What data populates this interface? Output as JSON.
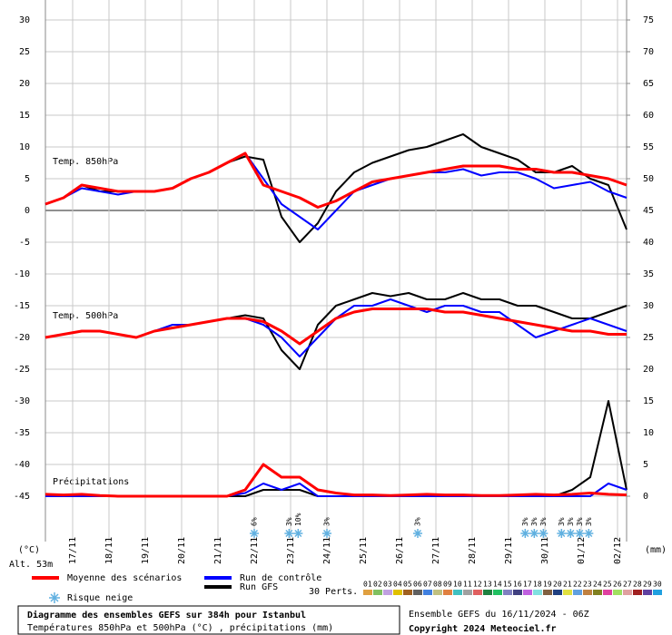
{
  "chart_data": {
    "type": "line",
    "title": "Diagramme des ensembles GEFS sur 384h pour Istanbul",
    "subtitle": "Températures 850hPa et 500hPa (°C) , précipitations (mm)",
    "run_info": "Ensemble GEFS du 16/11/2024 - 06Z",
    "copyright": "Copyright 2024 Meteociel.fr",
    "ylabel": "(°C)",
    "y2label": "(mm)",
    "altitude": "Alt. 53m",
    "panel_labels": [
      "Temp. 850hPa",
      "Temp. 500hPa",
      "Précipitations"
    ],
    "snow_label": "Risque neige",
    "perts_label": "30 Perts.",
    "legend": [
      {
        "label": "Moyenne des scénarios",
        "color": "#ff0000"
      },
      {
        "label": "Run de contrôle",
        "color": "#0000ff"
      },
      {
        "label": "Run GFS",
        "color": "#000000"
      }
    ],
    "perturbations": [
      {
        "name": "01",
        "color": "#e0a040"
      },
      {
        "name": "02",
        "color": "#80c060"
      },
      {
        "name": "03",
        "color": "#c0a0e0"
      },
      {
        "name": "04",
        "color": "#e0c000"
      },
      {
        "name": "05",
        "color": "#a06020"
      },
      {
        "name": "06",
        "color": "#606060"
      },
      {
        "name": "07",
        "color": "#4080e0"
      },
      {
        "name": "08",
        "color": "#c0c080"
      },
      {
        "name": "09",
        "color": "#e08040"
      },
      {
        "name": "10",
        "color": "#40c0c0"
      },
      {
        "name": "11",
        "color": "#a0a0a0"
      },
      {
        "name": "12",
        "color": "#e06060"
      },
      {
        "name": "13",
        "color": "#208040"
      },
      {
        "name": "14",
        "color": "#20c060"
      },
      {
        "name": "15",
        "color": "#8080c0"
      },
      {
        "name": "16",
        "color": "#404080"
      },
      {
        "name": "17",
        "color": "#c060e0"
      },
      {
        "name": "18",
        "color": "#80e0e0"
      },
      {
        "name": "19",
        "color": "#806040"
      },
      {
        "name": "20",
        "color": "#204080"
      },
      {
        "name": "21",
        "color": "#e0e040"
      },
      {
        "name": "22",
        "color": "#60a0e0"
      },
      {
        "name": "23",
        "color": "#c08040"
      },
      {
        "name": "24",
        "color": "#808020"
      },
      {
        "name": "25",
        "color": "#e040a0"
      },
      {
        "name": "26",
        "color": "#a0e060"
      },
      {
        "name": "27",
        "color": "#e0a0a0"
      },
      {
        "name": "28",
        "color": "#a02020"
      },
      {
        "name": "29",
        "color": "#6040a0"
      },
      {
        "name": "30",
        "color": "#20a0e0"
      }
    ],
    "x": [
      0,
      12,
      24,
      36,
      48,
      60,
      72,
      84,
      96,
      108,
      120,
      132,
      144,
      156,
      168,
      180,
      192,
      204,
      216,
      228,
      240,
      252,
      264,
      276,
      288,
      300,
      312,
      324,
      336,
      348,
      360,
      372,
      384
    ],
    "xlim": [
      0,
      384
    ],
    "xticks": [
      {
        "value": 18,
        "label": "17/11"
      },
      {
        "value": 42,
        "label": "18/11"
      },
      {
        "value": 66,
        "label": "19/11"
      },
      {
        "value": 90,
        "label": "20/11"
      },
      {
        "value": 114,
        "label": "21/11"
      },
      {
        "value": 138,
        "label": "22/11"
      },
      {
        "value": 162,
        "label": "23/11"
      },
      {
        "value": 186,
        "label": "24/11"
      },
      {
        "value": 210,
        "label": "25/11"
      },
      {
        "value": 234,
        "label": "26/11"
      },
      {
        "value": 258,
        "label": "27/11"
      },
      {
        "value": 282,
        "label": "28/11"
      },
      {
        "value": 306,
        "label": "29/11"
      },
      {
        "value": 330,
        "label": "30/11"
      },
      {
        "value": 354,
        "label": "01/12"
      },
      {
        "value": 378,
        "label": "02/12"
      }
    ],
    "ylim": [
      -45,
      30
    ],
    "yticks": [
      -45,
      -40,
      -35,
      -30,
      -25,
      -20,
      -15,
      -10,
      -5,
      0,
      5,
      10,
      15,
      20,
      25,
      30
    ],
    "y2lim": [
      0,
      75
    ],
    "y2ticks": [
      0,
      5,
      10,
      15,
      20,
      25,
      30,
      35,
      40,
      45,
      50,
      55,
      60,
      65,
      70,
      75
    ],
    "grid": true,
    "series": [
      {
        "color": "#000000",
        "values": [
          1,
          2,
          4,
          3,
          3,
          3,
          3,
          3.5,
          5,
          6,
          7.5,
          8.5,
          8,
          -1,
          -5,
          -2,
          3,
          6,
          7.5,
          8.5,
          9.5,
          10,
          11,
          12,
          10,
          9,
          8,
          6,
          6,
          7,
          5,
          4,
          -3
        ]
      },
      {
        "color": "#0000ff",
        "values": [
          1,
          2,
          3.5,
          3,
          2.5,
          3,
          3,
          3.5,
          5,
          6,
          7.5,
          9,
          5,
          1,
          -1,
          -3,
          0,
          3,
          4,
          5,
          5.5,
          6,
          6,
          6.5,
          5.5,
          6,
          6,
          5,
          3.5,
          4,
          4.5,
          3,
          2
        ]
      },
      {
        "color": "#ff0000",
        "values": [
          1,
          2,
          4,
          3.5,
          3,
          3,
          3,
          3.5,
          5,
          6,
          7.5,
          9,
          4,
          3,
          2,
          0.5,
          1.5,
          3,
          4.5,
          5,
          5.5,
          6,
          6.5,
          7,
          7,
          7,
          6.5,
          6.5,
          6,
          6,
          5.5,
          5,
          4
        ]
      },
      {
        "color": "#000000",
        "values": [
          -20,
          -19.5,
          -19,
          -19,
          -19.5,
          -20,
          -19,
          -18.5,
          -18,
          -17.5,
          -17,
          -16.5,
          -17,
          -22,
          -25,
          -18,
          -15,
          -14,
          -13,
          -13.5,
          -13,
          -14,
          -14,
          -13,
          -14,
          -14,
          -15,
          -15,
          -16,
          -17,
          -17,
          -16,
          -15
        ]
      },
      {
        "color": "#0000ff",
        "values": [
          -20,
          -19.5,
          -19,
          -19,
          -19.5,
          -20,
          -19,
          -18,
          -18,
          -17.5,
          -17,
          -17,
          -18,
          -20,
          -23,
          -20,
          -17,
          -15,
          -15,
          -14,
          -15,
          -16,
          -15,
          -15,
          -16,
          -16,
          -18,
          -20,
          -19,
          -18,
          -17,
          -18,
          -19
        ]
      },
      {
        "color": "#ff0000",
        "values": [
          -20,
          -19.5,
          -19,
          -19,
          -19.5,
          -20,
          -19,
          -18.5,
          -18,
          -17.5,
          -17,
          -17,
          -17.5,
          -19,
          -21,
          -19,
          -17,
          -16,
          -15.5,
          -15.5,
          -15.5,
          -15.5,
          -16,
          -16,
          -16.5,
          -17,
          -17.5,
          -18,
          -18.5,
          -19,
          -19,
          -19.5,
          -19.5
        ]
      },
      {
        "color": "#000000",
        "axis": "y2",
        "values": [
          0,
          0,
          0,
          0,
          0,
          0,
          0,
          0,
          0,
          0,
          0,
          0,
          1,
          1,
          1,
          0,
          0,
          0,
          0,
          0,
          0,
          0,
          0,
          0,
          0,
          0,
          0,
          0,
          0,
          1,
          3,
          15,
          1
        ]
      },
      {
        "color": "#0000ff",
        "axis": "y2",
        "values": [
          0,
          0,
          0,
          0,
          0,
          0,
          0,
          0,
          0,
          0,
          0,
          0.5,
          2,
          1,
          2,
          0,
          0,
          0,
          0,
          0,
          0,
          0,
          0,
          0,
          0,
          0,
          0,
          0,
          0,
          0,
          0,
          2,
          1
        ]
      },
      {
        "color": "#ff0000",
        "axis": "y2",
        "values": [
          0.3,
          0.2,
          0.3,
          0.1,
          0,
          0,
          0,
          0,
          0,
          0,
          0,
          1,
          5,
          3,
          3,
          1,
          0.5,
          0.2,
          0.2,
          0.1,
          0.2,
          0.3,
          0.2,
          0.2,
          0.1,
          0.1,
          0.2,
          0.3,
          0.2,
          0.3,
          0.5,
          0.3,
          0.2
        ]
      }
    ],
    "snow_risk": [
      {
        "x": 138,
        "label": "6%"
      },
      {
        "x": 161,
        "label": "3%"
      },
      {
        "x": 167,
        "label": "10%"
      },
      {
        "x": 186,
        "label": "3%"
      },
      {
        "x": 246,
        "label": "3%"
      },
      {
        "x": 317,
        "label": "3%"
      },
      {
        "x": 323,
        "label": "3%"
      },
      {
        "x": 329,
        "label": "3%"
      },
      {
        "x": 341,
        "label": "3%"
      },
      {
        "x": 347,
        "label": "3%"
      },
      {
        "x": 353,
        "label": "3%"
      },
      {
        "x": 359,
        "label": "3%"
      }
    ]
  }
}
